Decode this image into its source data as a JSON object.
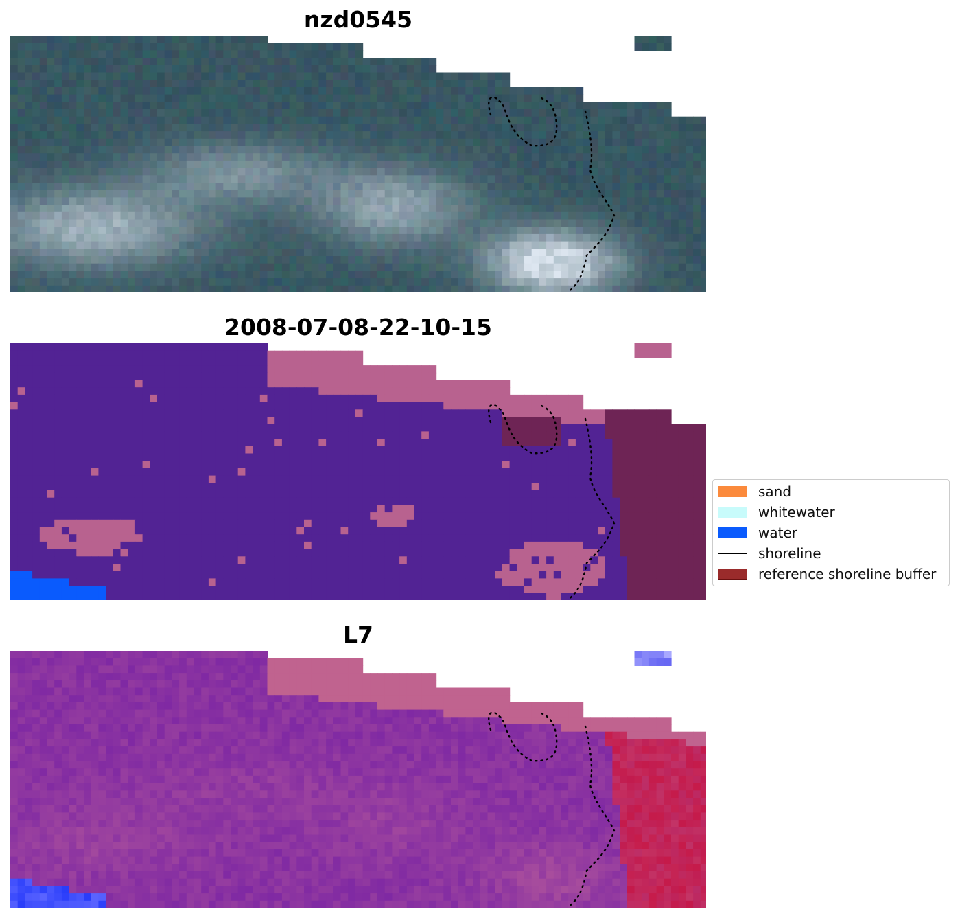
{
  "panels": [
    {
      "title": "nzd0545"
    },
    {
      "title": "2008-07-08-22-10-15"
    },
    {
      "title": "L7"
    }
  ],
  "legend": {
    "items": [
      {
        "label": "sand",
        "color": "#fb8a3c",
        "kind": "patch"
      },
      {
        "label": "whitewater",
        "color": "#c8fbfb",
        "kind": "patch"
      },
      {
        "label": "water",
        "color": "#0a5bfd",
        "kind": "patch"
      },
      {
        "label": "shoreline",
        "color": "#000000",
        "kind": "line"
      },
      {
        "label": "reference shoreline buffer",
        "color": "#9a2b2b",
        "kind": "patch"
      }
    ]
  },
  "colors": {
    "land_class": "#522394",
    "sand_class": "#b8628f",
    "buffer_class": "#6e2455",
    "water_class": "#0a5bfd",
    "rgb_dark": "#3a5a6a",
    "rgb_cloud": "#dde6f0",
    "mndwi_low": "#6a16a6",
    "mndwi_high": "#c80f3c"
  }
}
